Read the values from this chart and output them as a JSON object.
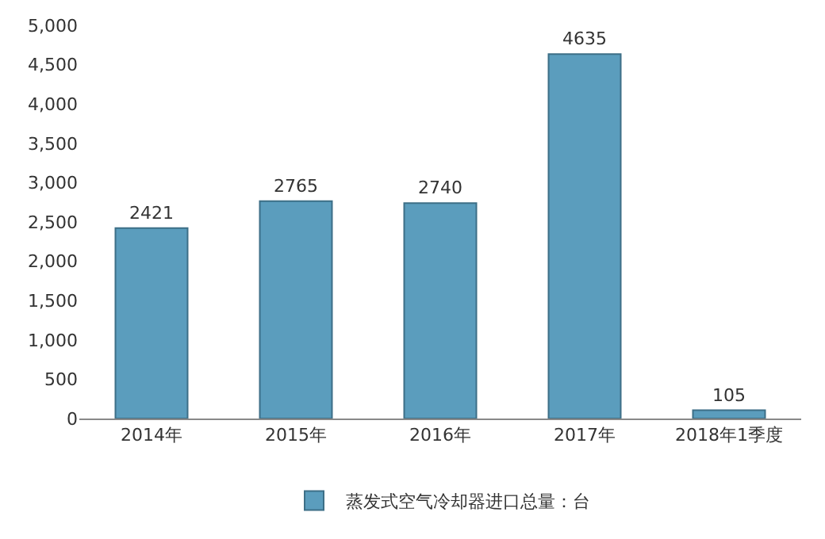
{
  "chart_data": {
    "type": "bar",
    "categories": [
      "2014年",
      "2015年",
      "2016年",
      "2017年",
      "2018年1季度"
    ],
    "series": [
      {
        "name": "蒸发式空气冷却器进口总量：台",
        "color": "#5b9dbd",
        "values": [
          2421,
          2765,
          2740,
          4635,
          105
        ]
      }
    ],
    "ylim": [
      0,
      5000
    ],
    "yticks": [
      0,
      500,
      {
        "value": 1000,
        "label": "1,000"
      },
      {
        "value": 1500,
        "label": "1,500"
      },
      {
        "value": 2000,
        "label": "2,000"
      },
      {
        "value": 2500,
        "label": "2,500"
      },
      {
        "value": 3000,
        "label": "3,000"
      },
      {
        "value": 3500,
        "label": "3,500"
      },
      {
        "value": 4000,
        "label": "4,000"
      },
      {
        "value": 4500,
        "label": "4,500"
      },
      {
        "value": 5000,
        "label": "5,000"
      }
    ],
    "data_labels": true,
    "grid": false,
    "legend": "bottom"
  }
}
